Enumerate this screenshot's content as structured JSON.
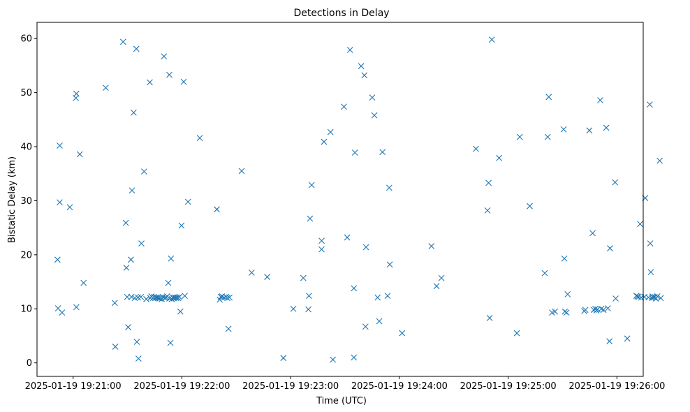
{
  "chart_data": {
    "type": "scatter",
    "title": "Detections in Delay",
    "xlabel": "Time (UTC)",
    "ylabel": "Bistatic Delay (km)",
    "x_unit": "seconds after 2025-01-19 19:21:00",
    "xlim": [
      -19.9,
      314.5
    ],
    "ylim": [
      -2.5,
      63
    ],
    "xticks": [
      0,
      60,
      120,
      180,
      240,
      300
    ],
    "xtick_labels": [
      "2025-01-19 19:21:00",
      "2025-01-19 19:22:00",
      "2025-01-19 19:23:00",
      "2025-01-19 19:24:00",
      "2025-01-19 19:25:00",
      "2025-01-19 19:26:00"
    ],
    "yticks": [
      0,
      10,
      20,
      30,
      40,
      50,
      60
    ],
    "ytick_labels": [
      "0",
      "10",
      "20",
      "30",
      "40",
      "50",
      "60"
    ],
    "marker": "x",
    "color": "#1f77b4",
    "series": [
      {
        "name": "Detections",
        "points": [
          [
            -8.6,
            19.1
          ],
          [
            -8.3,
            10.1
          ],
          [
            -7.4,
            40.2
          ],
          [
            -7.4,
            29.7
          ],
          [
            -6.1,
            9.3
          ],
          [
            -1.8,
            28.8
          ],
          [
            1.5,
            49.0
          ],
          [
            1.8,
            49.8
          ],
          [
            1.8,
            10.3
          ],
          [
            3.7,
            38.6
          ],
          [
            5.8,
            14.8
          ],
          [
            18,
            50.9
          ],
          [
            23,
            11.1
          ],
          [
            23.3,
            3.0
          ],
          [
            27.6,
            59.4
          ],
          [
            29.1,
            25.9
          ],
          [
            29.4,
            17.6
          ],
          [
            29.8,
            12.2
          ],
          [
            30.4,
            6.6
          ],
          [
            31.9,
            19.1
          ],
          [
            32.2,
            12.2
          ],
          [
            32.5,
            31.9
          ],
          [
            33.4,
            46.3
          ],
          [
            34,
            12.0
          ],
          [
            34.9,
            58.1
          ],
          [
            35.2,
            3.9
          ],
          [
            35.8,
            12.1
          ],
          [
            36.1,
            0.8
          ],
          [
            37.4,
            12.2
          ],
          [
            37.7,
            22.1
          ],
          [
            39.2,
            35.4
          ],
          [
            40.4,
            11.8
          ],
          [
            42.3,
            51.9
          ],
          [
            42.6,
            12.0
          ],
          [
            43.2,
            12.3
          ],
          [
            44.1,
            12.0
          ],
          [
            44.7,
            12.2
          ],
          [
            45.3,
            12.0
          ],
          [
            45.9,
            12.1
          ],
          [
            46.5,
            12.1
          ],
          [
            47.1,
            12.0
          ],
          [
            47.7,
            11.9
          ],
          [
            48.9,
            11.8
          ],
          [
            49.5,
            12.2
          ],
          [
            50.1,
            56.7
          ],
          [
            50.7,
            12.0
          ],
          [
            51.3,
            12.1
          ],
          [
            51.9,
            12.3
          ],
          [
            52.5,
            14.8
          ],
          [
            53.1,
            53.3
          ],
          [
            53.1,
            11.9
          ],
          [
            53.7,
            3.7
          ],
          [
            54.0,
            19.3
          ],
          [
            54.4,
            11.8
          ],
          [
            55.0,
            12.1
          ],
          [
            55.6,
            12.0
          ],
          [
            56.2,
            12.1
          ],
          [
            56.8,
            12.0
          ],
          [
            57.4,
            12.1
          ],
          [
            58.0,
            12.0
          ],
          [
            58.6,
            12.2
          ],
          [
            59.2,
            9.5
          ],
          [
            59.8,
            25.4
          ],
          [
            61.0,
            52.0
          ],
          [
            61.6,
            12.4
          ],
          [
            63.4,
            29.8
          ],
          [
            69.9,
            41.6
          ],
          [
            79.3,
            28.4
          ],
          [
            80.9,
            11.7
          ],
          [
            81.5,
            12.2
          ],
          [
            82.1,
            12.3
          ],
          [
            83.3,
            12.1
          ],
          [
            84.5,
            12.2
          ],
          [
            85.1,
            12.0
          ],
          [
            85.7,
            6.3
          ],
          [
            86.3,
            12.1
          ],
          [
            93.0,
            35.5
          ],
          [
            98.5,
            16.7
          ],
          [
            107.1,
            15.9
          ],
          [
            116.0,
            0.9
          ],
          [
            121.5,
            10.0
          ],
          [
            127.0,
            15.7
          ],
          [
            129.8,
            9.9
          ],
          [
            130.1,
            12.4
          ],
          [
            130.7,
            26.7
          ],
          [
            131.6,
            32.9
          ],
          [
            137.1,
            22.6
          ],
          [
            137.1,
            21.0
          ],
          [
            138.4,
            40.9
          ],
          [
            142.0,
            42.7
          ],
          [
            143.3,
            0.6
          ],
          [
            149.4,
            47.4
          ],
          [
            151.2,
            23.2
          ],
          [
            152.8,
            57.9
          ],
          [
            154.9,
            13.8
          ],
          [
            154.9,
            1.0
          ],
          [
            155.5,
            38.9
          ],
          [
            158.9,
            54.9
          ],
          [
            160.7,
            53.2
          ],
          [
            161.3,
            6.7
          ],
          [
            161.6,
            21.4
          ],
          [
            165.0,
            49.1
          ],
          [
            166.2,
            45.8
          ],
          [
            168.0,
            12.1
          ],
          [
            168.9,
            7.7
          ],
          [
            170.7,
            39.0
          ],
          [
            173.5,
            12.4
          ],
          [
            174.4,
            32.4
          ],
          [
            174.7,
            18.2
          ],
          [
            181.5,
            5.5
          ],
          [
            197.7,
            21.6
          ],
          [
            200.5,
            14.2
          ],
          [
            203.2,
            15.7
          ],
          [
            222.2,
            39.6
          ],
          [
            228.6,
            28.2
          ],
          [
            229.2,
            33.3
          ],
          [
            229.8,
            8.3
          ],
          [
            231.0,
            59.8
          ],
          [
            235.0,
            37.9
          ],
          [
            244.8,
            5.5
          ],
          [
            246.4,
            41.8
          ],
          [
            251.9,
            29.0
          ],
          [
            260.2,
            16.6
          ],
          [
            261.8,
            41.8
          ],
          [
            262.4,
            49.2
          ],
          [
            264.2,
            9.3
          ],
          [
            265.8,
            9.5
          ],
          [
            270.6,
            43.2
          ],
          [
            271.0,
            19.3
          ],
          [
            271.3,
            9.5
          ],
          [
            272.2,
            9.3
          ],
          [
            272.8,
            12.7
          ],
          [
            282.0,
            9.6
          ],
          [
            282.6,
            9.8
          ],
          [
            284.8,
            43.0
          ],
          [
            286.6,
            24.0
          ],
          [
            287.2,
            9.8
          ],
          [
            288.1,
            10.0
          ],
          [
            288.7,
            9.7
          ],
          [
            289.3,
            9.9
          ],
          [
            290.8,
            48.6
          ],
          [
            291.4,
            10.0
          ],
          [
            292.6,
            9.8
          ],
          [
            294.1,
            43.5
          ],
          [
            295.0,
            10.1
          ],
          [
            295.9,
            4.0
          ],
          [
            296.2,
            21.2
          ],
          [
            299.0,
            33.4
          ],
          [
            299.3,
            11.9
          ],
          [
            305.7,
            4.5
          ],
          [
            310.7,
            12.4
          ],
          [
            311.3,
            12.3
          ],
          [
            311.9,
            12.2
          ],
          [
            312.8,
            25.7
          ],
          [
            313.4,
            12.1
          ],
          [
            315.2,
            12.2
          ],
          [
            315.6,
            30.5
          ],
          [
            317.4,
            12.1
          ],
          [
            318.1,
            47.8
          ],
          [
            318.4,
            22.1
          ],
          [
            318.7,
            16.8
          ],
          [
            319.3,
            12.0
          ],
          [
            319.6,
            12.3
          ],
          [
            320.2,
            12.1
          ],
          [
            320.8,
            12.2
          ],
          [
            321.4,
            11.9
          ],
          [
            322.3,
            12.3
          ],
          [
            323.6,
            37.4
          ],
          [
            324.2,
            12.0
          ]
        ]
      }
    ]
  }
}
